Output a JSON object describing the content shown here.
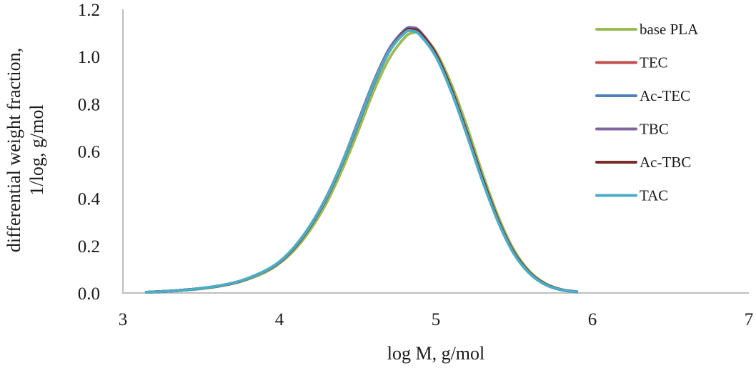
{
  "chart_data": {
    "type": "line",
    "title": "",
    "xlabel": "log M, g/mol",
    "ylabel": [
      "differential weight fraction,",
      "1/log, g/mol"
    ],
    "xlim": [
      3,
      7
    ],
    "ylim": [
      0,
      1.2
    ],
    "xticks": [
      "3",
      "4",
      "5",
      "6",
      "7"
    ],
    "yticks": [
      "0.0",
      "0.2",
      "0.4",
      "0.6",
      "0.8",
      "1.0",
      "1.2"
    ],
    "grid": false,
    "legend_position": "right",
    "x": [
      3.15,
      3.3,
      3.45,
      3.6,
      3.75,
      3.9,
      4.0,
      4.1,
      4.2,
      4.3,
      4.4,
      4.5,
      4.6,
      4.7,
      4.8,
      4.85,
      4.9,
      5.0,
      5.1,
      5.2,
      5.3,
      5.4,
      5.5,
      5.6,
      5.7,
      5.8,
      5.9
    ],
    "series": [
      {
        "name": "base PLA",
        "color": "#9bbb59",
        "values": [
          0.003,
          0.008,
          0.015,
          0.027,
          0.048,
          0.085,
          0.125,
          0.185,
          0.27,
          0.38,
          0.52,
          0.68,
          0.85,
          0.99,
          1.08,
          1.1,
          1.095,
          1.02,
          0.88,
          0.7,
          0.5,
          0.32,
          0.18,
          0.09,
          0.04,
          0.015,
          0.005
        ]
      },
      {
        "name": "TEC",
        "color": "#c0504d",
        "values": [
          0.003,
          0.008,
          0.016,
          0.028,
          0.05,
          0.09,
          0.13,
          0.195,
          0.285,
          0.4,
          0.545,
          0.71,
          0.88,
          1.02,
          1.105,
          1.115,
          1.1,
          1.01,
          0.86,
          0.675,
          0.48,
          0.305,
          0.17,
          0.085,
          0.037,
          0.014,
          0.005
        ]
      },
      {
        "name": "Ac-TEC",
        "color": "#4f81bd",
        "values": [
          0.003,
          0.008,
          0.016,
          0.028,
          0.05,
          0.09,
          0.13,
          0.195,
          0.285,
          0.4,
          0.545,
          0.71,
          0.88,
          1.02,
          1.105,
          1.115,
          1.1,
          1.01,
          0.86,
          0.675,
          0.48,
          0.305,
          0.17,
          0.085,
          0.037,
          0.014,
          0.005
        ]
      },
      {
        "name": "TBC",
        "color": "#8064a2",
        "values": [
          0.003,
          0.008,
          0.016,
          0.028,
          0.05,
          0.09,
          0.13,
          0.197,
          0.288,
          0.405,
          0.55,
          0.72,
          0.89,
          1.03,
          1.112,
          1.122,
          1.105,
          1.012,
          0.86,
          0.672,
          0.476,
          0.302,
          0.168,
          0.083,
          0.036,
          0.013,
          0.005
        ]
      },
      {
        "name": "Ac-TBC",
        "color": "#772c2a",
        "values": [
          0.003,
          0.008,
          0.016,
          0.028,
          0.05,
          0.09,
          0.13,
          0.195,
          0.285,
          0.4,
          0.545,
          0.71,
          0.88,
          1.02,
          1.105,
          1.115,
          1.1,
          1.01,
          0.86,
          0.675,
          0.48,
          0.305,
          0.17,
          0.085,
          0.037,
          0.014,
          0.005
        ]
      },
      {
        "name": "TAC",
        "color": "#4bacc6",
        "values": [
          0.003,
          0.008,
          0.016,
          0.029,
          0.051,
          0.091,
          0.132,
          0.198,
          0.288,
          0.403,
          0.548,
          0.713,
          0.882,
          1.02,
          1.1,
          1.108,
          1.09,
          1.0,
          0.85,
          0.665,
          0.47,
          0.298,
          0.165,
          0.082,
          0.035,
          0.013,
          0.005
        ]
      }
    ]
  }
}
